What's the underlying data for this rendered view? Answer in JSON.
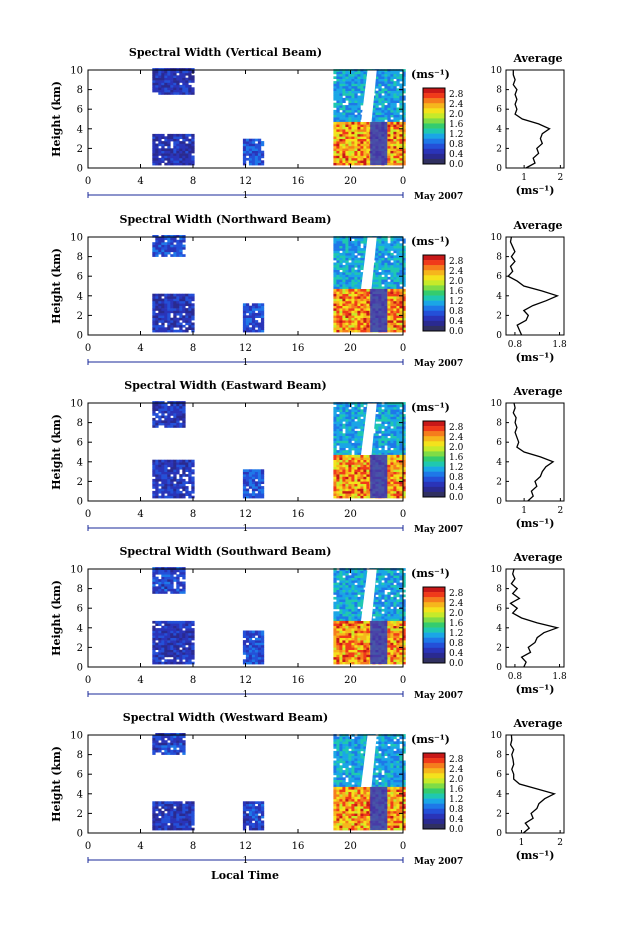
{
  "figure": {
    "xlabel": "Local Time",
    "date_label": "May 2007",
    "timeline_label": "1",
    "colorbar_unit": "(ms⁻¹)",
    "colorbar_ticks": [
      "2.8",
      "2.4",
      "2.0",
      "1.6",
      "1.2",
      "0.8",
      "0.4",
      "0.0"
    ],
    "colorbar_colors": [
      "#c81818",
      "#f03a1a",
      "#f57d1c",
      "#f6b61c",
      "#f4e21c",
      "#c6ea2a",
      "#7fdc46",
      "#34cc6e",
      "#1fc8b0",
      "#1aa6e6",
      "#1e78e8",
      "#2450d8",
      "#2a34b8",
      "#2a2a90",
      "#303060"
    ],
    "x_ticks": [
      "0",
      "4",
      "8",
      "12",
      "16",
      "20",
      "0"
    ],
    "y_ticks": [
      "0",
      "2",
      "4",
      "6",
      "8",
      "10"
    ],
    "ylabel": "Height (km)",
    "avg_title": "Average",
    "avg_xlabel": "(ms⁻¹)"
  },
  "chart_data": [
    {
      "type": "heatmap",
      "title": "Spectral Width (Vertical Beam)",
      "xlabel": "Local Time",
      "ylabel": "Height (km)",
      "xlim": [
        0,
        24
      ],
      "ylim": [
        0,
        10
      ],
      "colorbar_range": [
        0.0,
        2.8
      ],
      "blocks": [
        {
          "t0": 4.9,
          "t1": 8.0,
          "h0": 0.3,
          "h1": 3.3,
          "value": 0.35
        },
        {
          "t0": 4.9,
          "t1": 8.0,
          "h0": 7.5,
          "h1": 10.0,
          "value": 0.4
        },
        {
          "t0": 11.8,
          "t1": 13.3,
          "h0": 0.3,
          "h1": 2.8,
          "value": 0.55
        },
        {
          "t0": 18.7,
          "t1": 24.0,
          "h0": 4.7,
          "h1": 10.0,
          "value": 1.0
        },
        {
          "t0": 18.7,
          "t1": 24.0,
          "h0": 0.3,
          "h1": 4.7,
          "value": 2.3
        }
      ],
      "average": {
        "title": "Average",
        "xlabel": "(ms⁻¹)",
        "xlim": [
          0.5,
          2.1
        ],
        "x_ticks": [
          "1",
          "2"
        ],
        "height": [
          0,
          0.5,
          1,
          1.5,
          2,
          2.5,
          3,
          3.5,
          4,
          4.5,
          5,
          5.5,
          6,
          6.5,
          7,
          7.5,
          8,
          8.5,
          9,
          9.5,
          10
        ],
        "values": [
          1.05,
          1.3,
          1.25,
          1.4,
          1.35,
          1.5,
          1.45,
          1.5,
          1.7,
          1.4,
          0.95,
          0.75,
          0.8,
          0.75,
          0.8,
          0.75,
          0.8,
          0.7,
          0.75,
          0.7,
          0.7
        ]
      }
    },
    {
      "type": "heatmap",
      "title": "Spectral Width (Northward Beam)",
      "xlabel": "Local Time",
      "ylabel": "Height (km)",
      "xlim": [
        0,
        24
      ],
      "ylim": [
        0,
        10
      ],
      "colorbar_range": [
        0.0,
        2.8
      ],
      "blocks": [
        {
          "t0": 4.9,
          "t1": 8.0,
          "h0": 0.3,
          "h1": 4.0,
          "value": 0.4
        },
        {
          "t0": 4.9,
          "t1": 7.2,
          "h0": 8.0,
          "h1": 10.0,
          "value": 0.6
        },
        {
          "t0": 11.8,
          "t1": 13.3,
          "h0": 0.3,
          "h1": 3.2,
          "value": 0.55
        },
        {
          "t0": 18.7,
          "t1": 24.0,
          "h0": 4.7,
          "h1": 10.0,
          "value": 1.0
        },
        {
          "t0": 18.7,
          "t1": 24.0,
          "h0": 0.3,
          "h1": 4.7,
          "value": 2.3
        }
      ],
      "average": {
        "title": "Average",
        "xlabel": "(ms⁻¹)",
        "xlim": [
          0.6,
          1.9
        ],
        "x_ticks": [
          "0.8",
          "1.8"
        ],
        "height": [
          0,
          0.5,
          1,
          1.5,
          2,
          2.5,
          3,
          3.5,
          4,
          4.5,
          5,
          5.5,
          6,
          6.5,
          7,
          7.5,
          8,
          8.5,
          9,
          9.5,
          10
        ],
        "values": [
          0.95,
          0.9,
          0.85,
          1.05,
          1.1,
          1.0,
          1.2,
          1.5,
          1.75,
          1.4,
          1.0,
          0.85,
          0.65,
          0.75,
          0.7,
          0.8,
          0.72,
          0.8,
          0.75,
          0.7,
          0.72
        ]
      }
    },
    {
      "type": "heatmap",
      "title": "Spectral Width (Eastward Beam)",
      "xlabel": "Local Time",
      "ylabel": "Height (km)",
      "xlim": [
        0,
        24
      ],
      "ylim": [
        0,
        10
      ],
      "colorbar_range": [
        0.0,
        2.8
      ],
      "blocks": [
        {
          "t0": 4.9,
          "t1": 8.0,
          "h0": 0.3,
          "h1": 4.0,
          "value": 0.4
        },
        {
          "t0": 4.9,
          "t1": 7.3,
          "h0": 7.5,
          "h1": 10.0,
          "value": 0.45
        },
        {
          "t0": 11.8,
          "t1": 13.3,
          "h0": 0.3,
          "h1": 3.0,
          "value": 0.65
        },
        {
          "t0": 18.7,
          "t1": 24.0,
          "h0": 4.7,
          "h1": 10.0,
          "value": 1.0
        },
        {
          "t0": 18.7,
          "t1": 24.0,
          "h0": 0.3,
          "h1": 4.7,
          "value": 2.3
        }
      ],
      "average": {
        "title": "Average",
        "xlabel": "(ms⁻¹)",
        "xlim": [
          0.5,
          2.1
        ],
        "x_ticks": [
          "1",
          "2"
        ],
        "height": [
          0,
          0.5,
          1,
          1.5,
          2,
          2.5,
          3,
          3.5,
          4,
          4.5,
          5,
          5.5,
          6,
          6.5,
          7,
          7.5,
          8,
          8.5,
          9,
          9.5,
          10
        ],
        "values": [
          1.1,
          1.25,
          1.2,
          1.35,
          1.3,
          1.45,
          1.5,
          1.6,
          1.8,
          1.45,
          1.0,
          0.8,
          0.85,
          0.8,
          0.75,
          0.8,
          0.75,
          0.78,
          0.7,
          0.75,
          0.72
        ]
      }
    },
    {
      "type": "heatmap",
      "title": "Spectral Width (Southward Beam)",
      "xlabel": "Local Time",
      "ylabel": "Height (km)",
      "xlim": [
        0,
        24
      ],
      "ylim": [
        0,
        10
      ],
      "colorbar_range": [
        0.0,
        2.8
      ],
      "blocks": [
        {
          "t0": 4.9,
          "t1": 8.0,
          "h0": 0.3,
          "h1": 4.5,
          "value": 0.4
        },
        {
          "t0": 4.9,
          "t1": 7.4,
          "h0": 7.5,
          "h1": 10.0,
          "value": 0.5
        },
        {
          "t0": 11.8,
          "t1": 13.3,
          "h0": 0.3,
          "h1": 3.6,
          "value": 0.55
        },
        {
          "t0": 18.7,
          "t1": 24.0,
          "h0": 4.7,
          "h1": 10.0,
          "value": 1.0
        },
        {
          "t0": 18.7,
          "t1": 24.0,
          "h0": 0.3,
          "h1": 4.7,
          "value": 2.3
        }
      ],
      "average": {
        "title": "Average",
        "xlabel": "(ms⁻¹)",
        "xlim": [
          0.6,
          1.9
        ],
        "x_ticks": [
          "0.8",
          "1.8"
        ],
        "height": [
          0,
          0.5,
          1,
          1.5,
          2,
          2.5,
          3,
          3.5,
          4,
          4.5,
          5,
          5.5,
          6,
          6.5,
          7,
          7.5,
          8,
          8.5,
          9,
          9.5,
          10
        ],
        "values": [
          1.0,
          1.05,
          0.95,
          1.15,
          1.1,
          1.25,
          1.3,
          1.45,
          1.75,
          1.3,
          0.95,
          0.75,
          0.85,
          0.7,
          0.9,
          0.75,
          0.85,
          0.72,
          0.8,
          0.75,
          0.78
        ]
      }
    },
    {
      "type": "heatmap",
      "title": "Spectral Width (Westward Beam)",
      "xlabel": "Local Time",
      "ylabel": "Height (km)",
      "xlim": [
        0,
        24
      ],
      "ylim": [
        0,
        10
      ],
      "colorbar_range": [
        0.0,
        2.8
      ],
      "blocks": [
        {
          "t0": 4.9,
          "t1": 8.0,
          "h0": 0.3,
          "h1": 3.0,
          "value": 0.4
        },
        {
          "t0": 4.9,
          "t1": 7.2,
          "h0": 8.0,
          "h1": 10.0,
          "value": 0.5
        },
        {
          "t0": 11.8,
          "t1": 13.3,
          "h0": 0.3,
          "h1": 3.2,
          "value": 0.5
        },
        {
          "t0": 18.7,
          "t1": 24.0,
          "h0": 4.7,
          "h1": 10.0,
          "value": 1.0
        },
        {
          "t0": 18.7,
          "t1": 24.0,
          "h0": 0.3,
          "h1": 4.7,
          "value": 2.3
        }
      ],
      "average": {
        "title": "Average",
        "xlabel": "(ms⁻¹)",
        "xlim": [
          0.6,
          2.1
        ],
        "x_ticks": [
          "1",
          "2"
        ],
        "height": [
          0,
          0.5,
          1,
          1.5,
          2,
          2.5,
          3,
          3.5,
          4,
          4.5,
          5,
          5.5,
          6,
          6.5,
          7,
          7.5,
          8,
          8.5,
          9,
          9.5,
          10
        ],
        "values": [
          1.05,
          1.2,
          1.1,
          1.3,
          1.25,
          1.4,
          1.45,
          1.6,
          1.85,
          1.4,
          0.95,
          0.8,
          0.8,
          0.75,
          0.8,
          0.78,
          0.75,
          0.8,
          0.72,
          0.75,
          0.74
        ]
      }
    }
  ]
}
